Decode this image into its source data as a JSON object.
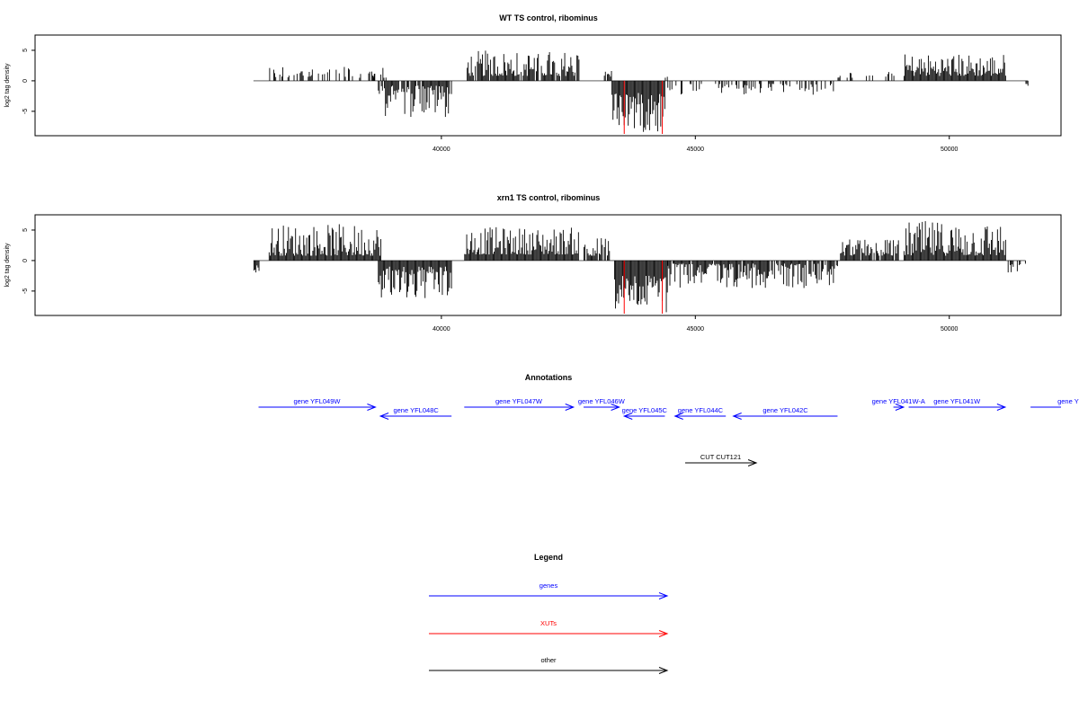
{
  "chart_data": [
    {
      "type": "bar",
      "title": "WT TS control, ribominus",
      "xlabel": "",
      "ylabel": "log2 tag density",
      "xlim": [
        32000,
        52200
      ],
      "ylim": [
        -9,
        7.5
      ],
      "x_ticks": [
        "40000",
        "45000",
        "50000"
      ],
      "y_ticks": [
        "-5",
        "0",
        "5"
      ],
      "xut_markers": [
        43600,
        44350
      ],
      "segments": [
        {
          "start": 36300,
          "end": 36350,
          "sign": -1,
          "density": 0.2,
          "min": 0.5,
          "max": 1.0
        },
        {
          "start": 36550,
          "end": 37800,
          "sign": 1,
          "density": 0.4,
          "min": 0.5,
          "max": 2.5
        },
        {
          "start": 37900,
          "end": 38900,
          "sign": 1,
          "density": 0.4,
          "min": 0.5,
          "max": 2.5
        },
        {
          "start": 38650,
          "end": 38700,
          "sign": 1,
          "density": 0.5,
          "min": 0.5,
          "max": 1.5
        },
        {
          "start": 38750,
          "end": 40200,
          "sign": -1,
          "density": 0.9,
          "min": 0.8,
          "max": 6.0
        },
        {
          "start": 40500,
          "end": 42700,
          "sign": 1,
          "density": 0.9,
          "min": 0.8,
          "max": 5.0
        },
        {
          "start": 43200,
          "end": 43350,
          "sign": 1,
          "density": 0.5,
          "min": 0.5,
          "max": 2.0
        },
        {
          "start": 43350,
          "end": 44400,
          "sign": -1,
          "density": 1.0,
          "min": 2.0,
          "max": 8.5
        },
        {
          "start": 44400,
          "end": 44450,
          "sign": 1,
          "density": 0.5,
          "min": 0.5,
          "max": 1.5
        },
        {
          "start": 44450,
          "end": 47800,
          "sign": -1,
          "density": 0.35,
          "min": 0.5,
          "max": 2.5
        },
        {
          "start": 47800,
          "end": 49000,
          "sign": 1,
          "density": 0.25,
          "min": 0.5,
          "max": 1.5
        },
        {
          "start": 49100,
          "end": 51100,
          "sign": 1,
          "density": 1.0,
          "min": 0.8,
          "max": 4.5
        },
        {
          "start": 51500,
          "end": 51550,
          "sign": -1,
          "density": 0.5,
          "min": 0.5,
          "max": 1.0
        }
      ]
    },
    {
      "type": "bar",
      "title": "xrn1 TS control, ribominus",
      "xlabel": "",
      "ylabel": "log2 tag density",
      "xlim": [
        32000,
        52200
      ],
      "ylim": [
        -9,
        7.5
      ],
      "x_ticks": [
        "40000",
        "45000",
        "50000"
      ],
      "y_ticks": [
        "-5",
        "0",
        "5"
      ],
      "xut_markers": [
        43600,
        44350
      ],
      "segments": [
        {
          "start": 36300,
          "end": 36400,
          "sign": -1,
          "density": 1.0,
          "min": 0.8,
          "max": 2.5
        },
        {
          "start": 36600,
          "end": 38800,
          "sign": 1,
          "density": 1.0,
          "min": 0.8,
          "max": 6.0
        },
        {
          "start": 38750,
          "end": 40200,
          "sign": -1,
          "density": 1.0,
          "min": 1.0,
          "max": 7.0
        },
        {
          "start": 40450,
          "end": 42700,
          "sign": 1,
          "density": 1.0,
          "min": 1.0,
          "max": 5.5
        },
        {
          "start": 42800,
          "end": 43300,
          "sign": 1,
          "density": 0.8,
          "min": 0.8,
          "max": 4.0
        },
        {
          "start": 43400,
          "end": 44450,
          "sign": -1,
          "density": 1.0,
          "min": 2.5,
          "max": 8.5
        },
        {
          "start": 44450,
          "end": 47800,
          "sign": -1,
          "density": 0.9,
          "min": 0.5,
          "max": 4.5
        },
        {
          "start": 47850,
          "end": 49000,
          "sign": 1,
          "density": 0.9,
          "min": 0.8,
          "max": 3.5
        },
        {
          "start": 49100,
          "end": 51100,
          "sign": 1,
          "density": 1.0,
          "min": 0.8,
          "max": 6.5
        },
        {
          "start": 51150,
          "end": 51500,
          "sign": -1,
          "density": 0.6,
          "min": 0.5,
          "max": 2.0
        }
      ]
    }
  ],
  "annotations": {
    "title": "Annotations",
    "features": [
      {
        "label": "gene YFL049W",
        "start": 36400,
        "end": 38700,
        "strand": "+",
        "row": 0,
        "color": "#0000ff"
      },
      {
        "label": "gene YFL048C",
        "start": 38800,
        "end": 40200,
        "strand": "-",
        "row": 1,
        "color": "#0000ff"
      },
      {
        "label": "gene YFL047W",
        "start": 40450,
        "end": 42600,
        "strand": "+",
        "row": 0,
        "color": "#0000ff"
      },
      {
        "label": "gene YFL046W",
        "start": 42800,
        "end": 43500,
        "strand": "+",
        "row": 0,
        "color": "#0000ff"
      },
      {
        "label": "gene YFL045C",
        "start": 43600,
        "end": 44400,
        "strand": "-",
        "row": 1,
        "color": "#0000ff"
      },
      {
        "label": "gene YFL044C",
        "start": 44600,
        "end": 45600,
        "strand": "-",
        "row": 1,
        "color": "#0000ff"
      },
      {
        "label": "gene YFL042C",
        "start": 45750,
        "end": 47800,
        "strand": "-",
        "row": 1,
        "color": "#0000ff"
      },
      {
        "label": "gene YFL041W-A",
        "start": 48900,
        "end": 49100,
        "strand": "+",
        "row": 0,
        "color": "#0000ff"
      },
      {
        "label": "gene YFL041W",
        "start": 49200,
        "end": 51100,
        "strand": "+",
        "row": 0,
        "color": "#0000ff"
      },
      {
        "label": "gene Y",
        "start": 51600,
        "end": 52400,
        "strand": "+",
        "row": 0,
        "color": "#0000ff"
      },
      {
        "label": "CUT CUT121",
        "start": 44800,
        "end": 46200,
        "strand": "+",
        "row": 2,
        "color": "#000000"
      }
    ]
  },
  "legend": {
    "title": "Legend",
    "items": [
      {
        "label": "genes",
        "color": "#0000ff"
      },
      {
        "label": "XUTs",
        "color": "#ff0000"
      },
      {
        "label": "other",
        "color": "#000000"
      }
    ]
  }
}
